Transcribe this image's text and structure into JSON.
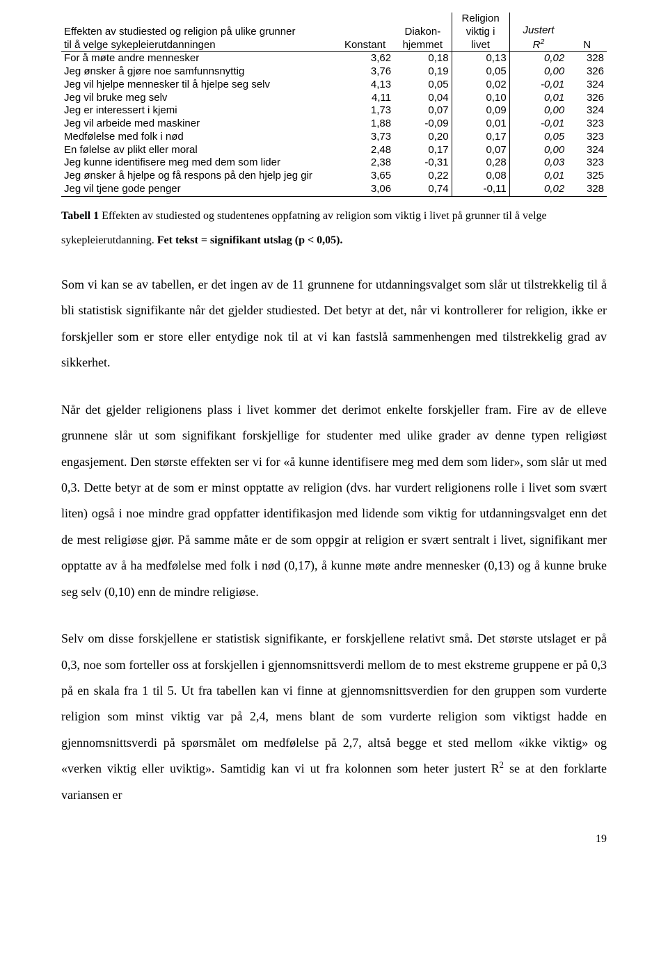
{
  "table": {
    "header": {
      "title_line1": "Effekten av studiested og religion på ulike grunner",
      "title_line2": "til å velge sykepleierutdanningen",
      "col_konstant": "Konstant",
      "col_diakon_line1": "Diakon-",
      "col_diakon_line2": "hjemmet",
      "col_religion_line1": "Religion",
      "col_religion_line2": "viktig i",
      "col_religion_line3": "livet",
      "col_r2_line1": "Justert",
      "col_r2_line2_html": "R<sup>2</sup>",
      "col_n": "N"
    },
    "rows": [
      {
        "label": "For å møte andre mennesker",
        "c1": "3,62",
        "c2": "0,18",
        "c3": "0,13",
        "c4": "0,02",
        "n": "328",
        "b": [
          1,
          0,
          1,
          0,
          0
        ]
      },
      {
        "label": "Jeg ønsker å gjøre noe samfunnsnyttig",
        "c1": "3,76",
        "c2": "0,19",
        "c3": "0,05",
        "c4": "0,00",
        "n": "326",
        "b": [
          1,
          0,
          0,
          0,
          0
        ]
      },
      {
        "label": "Jeg vil hjelpe mennesker til å hjelpe seg selv",
        "c1": "4,13",
        "c2": "0,05",
        "c3": "0,02",
        "c4": "-0,01",
        "n": "324",
        "b": [
          1,
          0,
          0,
          0,
          0
        ]
      },
      {
        "label": "Jeg vil bruke meg selv",
        "c1": "4,11",
        "c2": "0,04",
        "c3": "0,10",
        "c4": "0,01",
        "n": "326",
        "b": [
          1,
          0,
          1,
          0,
          0
        ]
      },
      {
        "label": "Jeg er interessert i kjemi",
        "c1": "1,73",
        "c2": "0,07",
        "c3": "0,09",
        "c4": "0,00",
        "n": "324",
        "b": [
          1,
          0,
          0,
          0,
          0
        ]
      },
      {
        "label": "Jeg vil arbeide med maskiner",
        "c1": "1,88",
        "c2": "-0,09",
        "c3": "0,01",
        "c4": "-0,01",
        "n": "323",
        "b": [
          1,
          0,
          0,
          0,
          0
        ]
      },
      {
        "label": "Medfølelse med folk i nød",
        "c1": "3,73",
        "c2": "0,20",
        "c3": "0,17",
        "c4": "0,05",
        "n": "323",
        "b": [
          1,
          0,
          1,
          0,
          0
        ]
      },
      {
        "label": "En følelse av plikt eller moral",
        "c1": "2,48",
        "c2": "0,17",
        "c3": "0,07",
        "c4": "0,00",
        "n": "324",
        "b": [
          1,
          0,
          0,
          0,
          0
        ]
      },
      {
        "label": "Jeg kunne identifisere meg med dem som lider",
        "c1": "2,38",
        "c2": "-0,31",
        "c3": "0,28",
        "c4": "0,03",
        "n": "323",
        "b": [
          1,
          0,
          1,
          0,
          0
        ]
      },
      {
        "label": "Jeg ønsker å hjelpe og få respons på den hjelp jeg gir",
        "c1": "3,65",
        "c2": "0,22",
        "c3": "0,08",
        "c4": "0,01",
        "n": "325",
        "b": [
          1,
          0,
          0,
          0,
          0
        ]
      },
      {
        "label": "Jeg vil tjene gode penger",
        "c1": "3,06",
        "c2": "0,74",
        "c3": "-0,11",
        "c4": "0,02",
        "n": "328",
        "b": [
          1,
          0,
          0,
          0,
          0
        ]
      }
    ]
  },
  "caption": {
    "lead": "Tabell 1",
    "text": " Effekten av studiested og studentenes oppfatning av religion som viktig i livet på grunner til å velge sykepleierutdanning. ",
    "note": "Fet tekst = signifikant utslag (p < 0,05)."
  },
  "paragraphs": [
    "Som vi kan se av tabellen, er det ingen av de 11 grunnene for utdanningsvalget som slår ut tilstrekkelig til å bli statistisk signifikante når det gjelder studiested. Det betyr at det, når vi kontrollerer for religion, ikke er forskjeller som er store eller entydige nok til at vi kan fastslå sammenhengen med tilstrekkelig grad av sikkerhet.",
    "Når det gjelder religionens plass i livet kommer det derimot enkelte forskjeller fram. Fire av de elleve grunnene slår ut som signifikant forskjellige for studenter med ulike grader av denne typen religiøst engasjement. Den største effekten ser vi for «å kunne identifisere meg med dem som lider», som slår ut med 0,3. Dette betyr at de som er minst opptatte av religion (dvs. har vurdert religionens rolle i livet som svært liten) også i noe mindre grad oppfatter identifikasjon med lidende som viktig for utdanningsvalget enn det de mest religiøse gjør. På samme måte er de som oppgir at religion er svært sentralt i livet, signifikant mer opptatte av å ha medfølelse med folk i nød (0,17), å kunne møte andre mennesker (0,13) og å kunne bruke seg selv (0,10) enn de mindre religiøse.",
    "Selv om disse forskjellene er statistisk signifikante, er forskjellene relativt små. Det største utslaget er på 0,3, noe som forteller oss at forskjellen i gjennomsnittsverdi mellom de to mest ekstreme gruppene er på 0,3 på en skala fra 1 til 5. Ut fra tabellen kan vi finne at gjennomsnittsverdien for den gruppen som vurderte religion som minst viktig var på 2,4, mens blant de som vurderte religion som viktigst hadde en gjennomsnittsverdi på spørsmålet om medfølelse på 2,7, altså begge et sted mellom «ikke viktig» og «verken viktig eller uviktig». Samtidig kan vi ut fra kolonnen som heter justert R<sup>2</sup> se at den forklarte variansen er"
  ],
  "page_number": "19"
}
